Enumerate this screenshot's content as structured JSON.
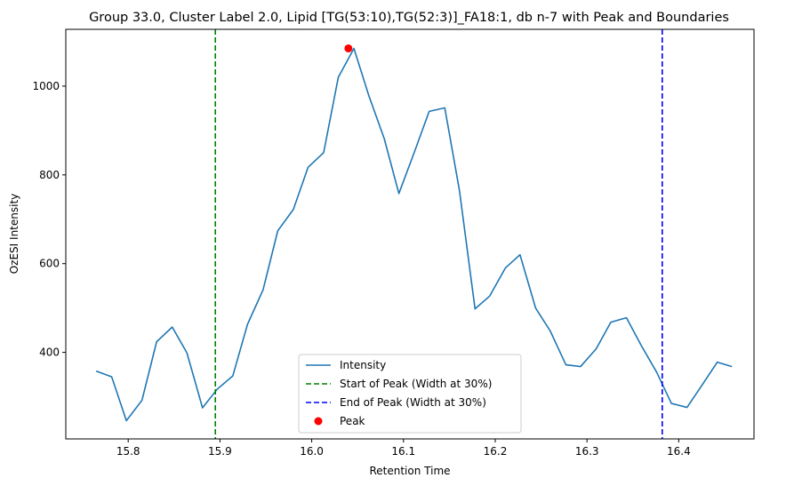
{
  "chart_data": {
    "type": "line",
    "title": "Group 33.0, Cluster Label 2.0, Lipid [TG(53:10),TG(52:3)]_FA18:1, db n-7 with Peak and Boundaries",
    "xlabel": "Retention Time",
    "ylabel": "OzESI Intensity",
    "xlim": [
      15.732,
      16.482
    ],
    "ylim": [
      205,
      1128
    ],
    "x_ticks": [
      15.8,
      15.9,
      16.0,
      16.1,
      16.2,
      16.3,
      16.4
    ],
    "x_tick_labels": [
      "15.8",
      "15.9",
      "16.0",
      "16.1",
      "16.2",
      "16.3",
      "16.4"
    ],
    "y_ticks": [
      400,
      600,
      800,
      1000
    ],
    "y_tick_labels": [
      "400",
      "600",
      "800",
      "1000"
    ],
    "grid": false,
    "legend_position": "lower-center",
    "series": [
      {
        "name": "Intensity",
        "kind": "line",
        "color": "#1f77b4",
        "x": [
          15.765,
          15.782,
          15.798,
          15.815,
          15.831,
          15.848,
          15.864,
          15.881,
          15.897,
          15.914,
          15.93,
          15.947,
          15.963,
          15.98,
          15.996,
          16.013,
          16.029,
          16.046,
          16.062,
          16.079,
          16.095,
          16.112,
          16.128,
          16.145,
          16.161,
          16.178,
          16.194,
          16.211,
          16.227,
          16.244,
          16.26,
          16.277,
          16.293,
          16.31,
          16.326,
          16.343,
          16.359,
          16.376,
          16.392,
          16.409,
          16.425,
          16.442,
          16.458
        ],
        "y": [
          358,
          345,
          246,
          292,
          424,
          457,
          399,
          275,
          317,
          347,
          463,
          541,
          674,
          722,
          817,
          850,
          1020,
          1085,
          980,
          882,
          758,
          852,
          943,
          951,
          765,
          498,
          527,
          590,
          620,
          500,
          448,
          372,
          368,
          408,
          468,
          478,
          416,
          355,
          285,
          276,
          325,
          378,
          368
        ]
      },
      {
        "name": "Start of Peak (Width at 30%)",
        "kind": "vline",
        "color": "#008000",
        "x": 15.895
      },
      {
        "name": "End of Peak (Width at 30%)",
        "kind": "vline",
        "color": "#0000ff",
        "x": 16.382
      },
      {
        "name": "Peak",
        "kind": "scatter",
        "color": "#ff0000",
        "x": [
          16.04
        ],
        "y": [
          1085
        ]
      }
    ]
  }
}
